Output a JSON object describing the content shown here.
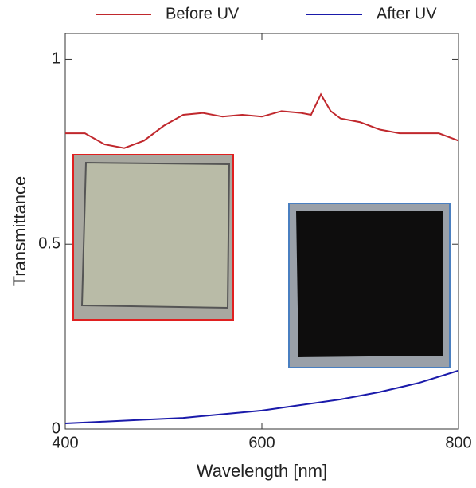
{
  "chart_data": {
    "type": "line",
    "xlabel": "Wavelength [nm]",
    "ylabel": "Transmittance",
    "xlim": [
      400,
      800
    ],
    "xticks": [
      400,
      600,
      800
    ],
    "ylim": [
      0,
      1.07
    ],
    "yticks": [
      0,
      0.5,
      1
    ],
    "series": [
      {
        "name": "Before UV",
        "color": "#c0282d",
        "x": [
          400,
          420,
          440,
          460,
          480,
          500,
          520,
          540,
          560,
          580,
          600,
          620,
          640,
          650,
          660,
          670,
          680,
          700,
          720,
          740,
          760,
          780,
          800
        ],
        "values": [
          0.8,
          0.8,
          0.77,
          0.76,
          0.78,
          0.82,
          0.85,
          0.855,
          0.845,
          0.85,
          0.845,
          0.86,
          0.855,
          0.85,
          0.905,
          0.86,
          0.84,
          0.83,
          0.81,
          0.8,
          0.8,
          0.8,
          0.78
        ]
      },
      {
        "name": "After UV",
        "color": "#1a1aaa",
        "x": [
          400,
          440,
          480,
          520,
          560,
          600,
          640,
          680,
          720,
          760,
          800
        ],
        "values": [
          0.015,
          0.02,
          0.025,
          0.03,
          0.04,
          0.05,
          0.065,
          0.08,
          0.1,
          0.125,
          0.158
        ]
      }
    ]
  }
}
